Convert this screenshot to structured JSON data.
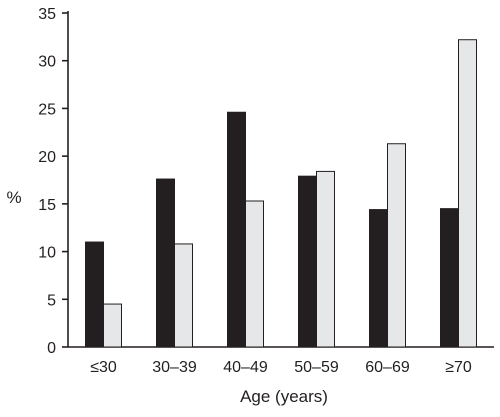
{
  "chart_data": {
    "type": "bar",
    "title": "",
    "xlabel": "Age (years)",
    "ylabel": "%",
    "ylim": [
      0,
      35
    ],
    "yticks": [
      0,
      5,
      10,
      15,
      20,
      25,
      30,
      35
    ],
    "grid": false,
    "legend": "none",
    "categories": [
      "≤30",
      "30–39",
      "40–49",
      "50–59",
      "60–69",
      "≥70"
    ],
    "series": [
      {
        "values": [
          11.0,
          17.6,
          24.6,
          17.9,
          14.4,
          14.5
        ],
        "color": "#231f20"
      },
      {
        "values": [
          4.5,
          10.8,
          15.3,
          18.4,
          21.3,
          32.2
        ],
        "color": "#e6e7e8"
      }
    ]
  }
}
